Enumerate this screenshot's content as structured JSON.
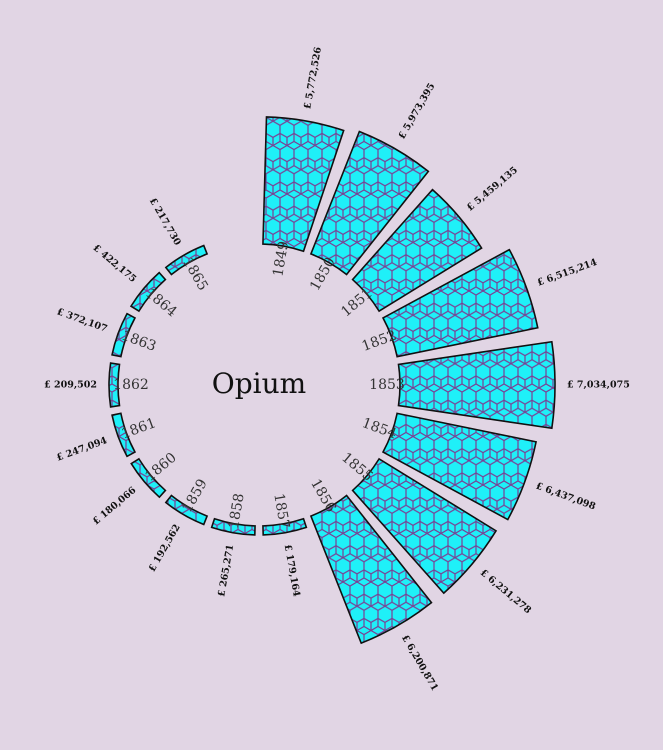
{
  "chart_data": {
    "type": "bar",
    "layout": "radial",
    "title": "Opium",
    "categories": [
      "1849",
      "1850",
      "1851",
      "1852",
      "1853",
      "1854",
      "1855",
      "1856",
      "1857",
      "1858",
      "1859",
      "1860",
      "1861",
      "1862",
      "1863",
      "1864",
      "1865"
    ],
    "values": [
      5772526,
      5973395,
      5459135,
      6515214,
      7034075,
      6437098,
      6231278,
      6200871,
      179164,
      265271,
      192562,
      180066,
      247094,
      209502,
      372107,
      422175,
      217730
    ],
    "value_labels": [
      "£ 5,772,526",
      "£ 5,973,395",
      "£ 5,459,135",
      "£ 6,515,214",
      "£ 7,034,075",
      "£ 6,437,098",
      "£ 6,231,278",
      "£ 6,200,871",
      "£ 179,164",
      "£ 265,271",
      "£ 192,562",
      "£ 180,066",
      "£ 247,094",
      "£ 209,502",
      "£ 372,107",
      "£ 422,175",
      "£ 217,730"
    ],
    "xlabel": "",
    "ylabel": "",
    "grid": false,
    "legend": "none",
    "colors": {
      "background": "#e1d5e4",
      "hex_fill": "#1ff0f8",
      "hex_stroke": "#7b3f93",
      "bar_outline": "#111111",
      "bar_base": "#e8d8ec"
    }
  }
}
